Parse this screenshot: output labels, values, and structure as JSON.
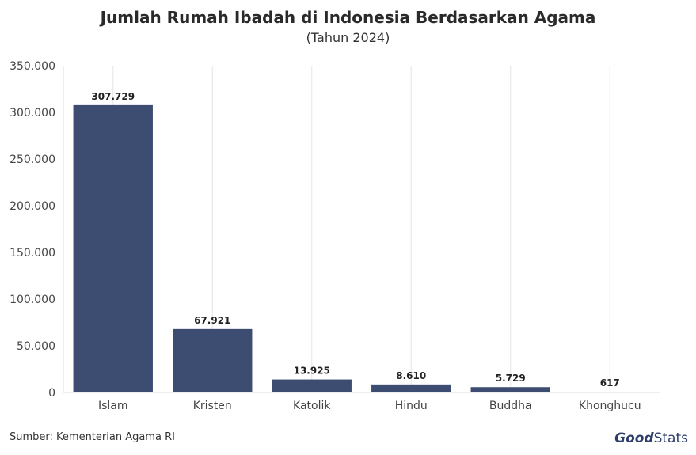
{
  "chart_data": {
    "type": "bar",
    "title": "Jumlah Rumah Ibadah di Indonesia Berdasarkan Agama",
    "subtitle": "(Tahun 2024)",
    "categories": [
      "Islam",
      "Kristen",
      "Katolik",
      "Hindu",
      "Buddha",
      "Khonghucu"
    ],
    "values": [
      307729,
      67921,
      13925,
      8610,
      5729,
      617
    ],
    "data_labels": [
      "307.729",
      "67.921",
      "13.925",
      "8.610",
      "5.729",
      "617"
    ],
    "ylim": [
      0,
      350000
    ],
    "yticks": [
      0,
      50000,
      100000,
      150000,
      200000,
      250000,
      300000,
      350000
    ],
    "ytick_labels": [
      "0",
      "50.000",
      "100.000",
      "150.000",
      "200.000",
      "250.000",
      "300.000",
      "350.000"
    ],
    "grid": true,
    "bar_color": "#3d4d71"
  },
  "footer": {
    "source": "Sumber: Kementerian Agama RI",
    "brand_good": "Good",
    "brand_stats": "Stats"
  }
}
